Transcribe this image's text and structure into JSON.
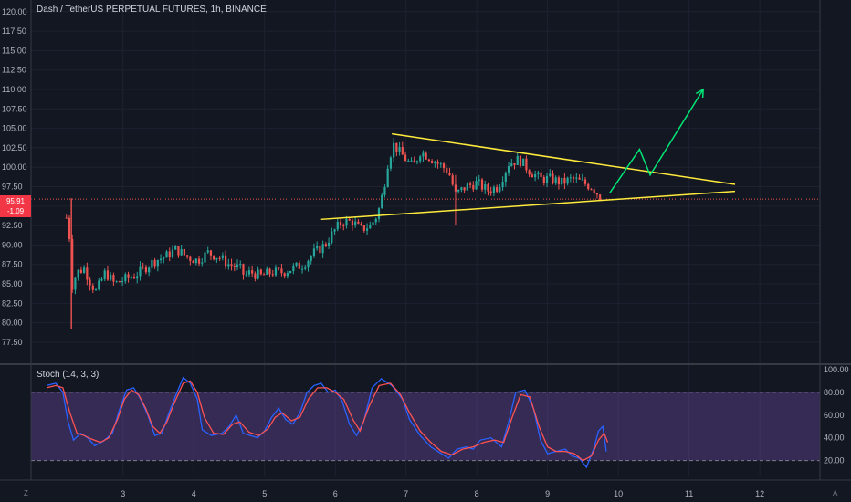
{
  "header": {
    "symbol": "Dash / TetherUS PERPETUAL FUTURES, 1h, BINANCE",
    "indicator": "Stoch (14, 3, 3)"
  },
  "price_tag": {
    "line1": "95.91",
    "line2": "-1.09"
  },
  "corner": {
    "left": "Z",
    "right": "A"
  },
  "colors": {
    "background": "#131722",
    "bull": "#26a69a",
    "bear": "#ef5350",
    "trendline": "#ffeb3b",
    "projection": "#00e676",
    "stoch_k": "#2962ff",
    "stoch_d": "#ff5252",
    "stoch_band": "#7e57c2"
  },
  "chart_data": [
    {
      "type": "candlestick",
      "title": "Dash / TetherUS PERPETUAL FUTURES, 1h, BINANCE",
      "x_ticks": [
        "3",
        "4",
        "5",
        "6",
        "7",
        "8",
        "9",
        "10",
        "11",
        "12"
      ],
      "y_ticks": [
        "77.50",
        "80.00",
        "82.50",
        "85.00",
        "87.50",
        "90.00",
        "92.50",
        "95.00",
        "97.50",
        "100.00",
        "102.50",
        "105.00",
        "107.50",
        "110.00",
        "112.50",
        "115.00",
        "117.50",
        "120.00"
      ],
      "ylim": [
        75.5,
        121.5
      ],
      "xlim": [
        1.7,
        12.85
      ],
      "last_price": 95.91,
      "close_path": [
        [
          2.2,
          93.5
        ],
        [
          2.22,
          94.8
        ],
        [
          2.24,
          91.5
        ],
        [
          2.27,
          84.5
        ],
        [
          2.35,
          86.5
        ],
        [
          2.45,
          87.0
        ],
        [
          2.55,
          85.0
        ],
        [
          2.62,
          84.0
        ],
        [
          2.75,
          86.5
        ],
        [
          2.88,
          85.0
        ],
        [
          3.0,
          85.5
        ],
        [
          3.15,
          86.0
        ],
        [
          3.3,
          87.0
        ],
        [
          3.45,
          88.0
        ],
        [
          3.6,
          88.5
        ],
        [
          3.75,
          89.5
        ],
        [
          3.9,
          88.5
        ],
        [
          4.05,
          88.0
        ],
        [
          4.2,
          89.0
        ],
        [
          4.35,
          88.5
        ],
        [
          4.5,
          87.5
        ],
        [
          4.65,
          87.0
        ],
        [
          4.72,
          86.0
        ],
        [
          4.8,
          86.5
        ],
        [
          4.95,
          86.0
        ],
        [
          5.1,
          86.5
        ],
        [
          5.25,
          86.5
        ],
        [
          5.4,
          87.0
        ],
        [
          5.55,
          87.5
        ],
        [
          5.7,
          89.0
        ],
        [
          5.85,
          90.0
        ],
        [
          6.0,
          92.0
        ],
        [
          6.1,
          93.0
        ],
        [
          6.25,
          93.0
        ],
        [
          6.35,
          92.0
        ],
        [
          6.5,
          92.5
        ],
        [
          6.6,
          94.0
        ],
        [
          6.68,
          97.0
        ],
        [
          6.75,
          101.0
        ],
        [
          6.83,
          103.0
        ],
        [
          6.9,
          102.0
        ],
        [
          7.0,
          101.0
        ],
        [
          7.1,
          100.0
        ],
        [
          7.2,
          102.0
        ],
        [
          7.3,
          101.5
        ],
        [
          7.45,
          100.5
        ],
        [
          7.6,
          99.5
        ],
        [
          7.7,
          96.5
        ],
        [
          7.85,
          97.5
        ],
        [
          8.0,
          98.0
        ],
        [
          8.15,
          97.0
        ],
        [
          8.3,
          97.5
        ],
        [
          8.45,
          100.5
        ],
        [
          8.6,
          101.0
        ],
        [
          8.75,
          99.5
        ],
        [
          8.9,
          98.5
        ],
        [
          9.05,
          98.5
        ],
        [
          9.2,
          98.0
        ],
        [
          9.35,
          98.5
        ],
        [
          9.5,
          98.0
        ],
        [
          9.62,
          97.5
        ],
        [
          9.72,
          96.5
        ],
        [
          9.78,
          95.9
        ]
      ],
      "annotations": {
        "upper_trendline": [
          [
            6.8,
            104.3
          ],
          [
            11.65,
            97.8
          ]
        ],
        "lower_trendline": [
          [
            5.8,
            93.3
          ],
          [
            11.65,
            96.9
          ]
        ],
        "projection_path": [
          [
            9.88,
            96.7
          ],
          [
            10.3,
            102.3
          ],
          [
            10.45,
            99.0
          ],
          [
            11.2,
            110.0
          ]
        ]
      }
    },
    {
      "type": "line",
      "title": "Stoch (14, 3, 3)",
      "y_ticks": [
        "20.00",
        "40.00",
        "60.00",
        "80.00",
        "100.00"
      ],
      "ylim": [
        6,
        104
      ],
      "band": [
        20,
        80
      ],
      "series": [
        {
          "name": "%K",
          "points": [
            [
              1.92,
              86
            ],
            [
              2.05,
              88
            ],
            [
              2.15,
              80
            ],
            [
              2.22,
              55
            ],
            [
              2.3,
              38
            ],
            [
              2.4,
              44
            ],
            [
              2.5,
              40
            ],
            [
              2.6,
              33
            ],
            [
              2.72,
              37
            ],
            [
              2.85,
              44
            ],
            [
              2.95,
              65
            ],
            [
              3.05,
              82
            ],
            [
              3.15,
              84
            ],
            [
              3.25,
              74
            ],
            [
              3.35,
              60
            ],
            [
              3.45,
              42
            ],
            [
              3.55,
              44
            ],
            [
              3.65,
              62
            ],
            [
              3.75,
              78
            ],
            [
              3.85,
              93
            ],
            [
              3.95,
              88
            ],
            [
              4.05,
              74
            ],
            [
              4.12,
              47
            ],
            [
              4.25,
              42
            ],
            [
              4.4,
              44
            ],
            [
              4.5,
              50
            ],
            [
              4.6,
              60
            ],
            [
              4.7,
              44
            ],
            [
              4.8,
              42
            ],
            [
              4.9,
              40
            ],
            [
              5.0,
              46
            ],
            [
              5.1,
              58
            ],
            [
              5.2,
              66
            ],
            [
              5.3,
              56
            ],
            [
              5.4,
              52
            ],
            [
              5.5,
              62
            ],
            [
              5.6,
              80
            ],
            [
              5.7,
              86
            ],
            [
              5.8,
              88
            ],
            [
              5.9,
              80
            ],
            [
              6.0,
              82
            ],
            [
              6.1,
              72
            ],
            [
              6.2,
              52
            ],
            [
              6.3,
              42
            ],
            [
              6.4,
              54
            ],
            [
              6.52,
              84
            ],
            [
              6.65,
              92
            ],
            [
              6.8,
              86
            ],
            [
              6.95,
              74
            ],
            [
              7.05,
              56
            ],
            [
              7.2,
              42
            ],
            [
              7.35,
              32
            ],
            [
              7.5,
              26
            ],
            [
              7.6,
              22
            ],
            [
              7.72,
              30
            ],
            [
              7.85,
              32
            ],
            [
              7.95,
              30
            ],
            [
              8.05,
              38
            ],
            [
              8.2,
              40
            ],
            [
              8.35,
              32
            ],
            [
              8.45,
              54
            ],
            [
              8.55,
              80
            ],
            [
              8.68,
              82
            ],
            [
              8.8,
              66
            ],
            [
              8.9,
              38
            ],
            [
              9.0,
              26
            ],
            [
              9.12,
              28
            ],
            [
              9.25,
              30
            ],
            [
              9.35,
              24
            ],
            [
              9.45,
              22
            ],
            [
              9.55,
              14
            ],
            [
              9.65,
              30
            ],
            [
              9.72,
              46
            ],
            [
              9.78,
              50
            ],
            [
              9.83,
              28
            ]
          ]
        },
        {
          "name": "%D",
          "points": [
            [
              1.92,
              84
            ],
            [
              2.05,
              86
            ],
            [
              2.15,
              84
            ],
            [
              2.25,
              62
            ],
            [
              2.35,
              44
            ],
            [
              2.45,
              42
            ],
            [
              2.55,
              39
            ],
            [
              2.68,
              36
            ],
            [
              2.8,
              40
            ],
            [
              2.92,
              56
            ],
            [
              3.02,
              74
            ],
            [
              3.12,
              82
            ],
            [
              3.22,
              78
            ],
            [
              3.32,
              66
            ],
            [
              3.42,
              50
            ],
            [
              3.52,
              44
            ],
            [
              3.62,
              54
            ],
            [
              3.72,
              70
            ],
            [
              3.85,
              88
            ],
            [
              3.95,
              90
            ],
            [
              4.05,
              80
            ],
            [
              4.15,
              58
            ],
            [
              4.28,
              44
            ],
            [
              4.42,
              43
            ],
            [
              4.55,
              52
            ],
            [
              4.65,
              54
            ],
            [
              4.78,
              45
            ],
            [
              4.92,
              42
            ],
            [
              5.05,
              48
            ],
            [
              5.15,
              58
            ],
            [
              5.25,
              62
            ],
            [
              5.38,
              55
            ],
            [
              5.5,
              58
            ],
            [
              5.62,
              74
            ],
            [
              5.75,
              84
            ],
            [
              5.88,
              84
            ],
            [
              6.0,
              80
            ],
            [
              6.12,
              74
            ],
            [
              6.25,
              56
            ],
            [
              6.35,
              46
            ],
            [
              6.48,
              68
            ],
            [
              6.62,
              86
            ],
            [
              6.78,
              88
            ],
            [
              6.92,
              78
            ],
            [
              7.05,
              62
            ],
            [
              7.2,
              46
            ],
            [
              7.35,
              36
            ],
            [
              7.5,
              28
            ],
            [
              7.65,
              25
            ],
            [
              7.8,
              30
            ],
            [
              7.95,
              32
            ],
            [
              8.1,
              36
            ],
            [
              8.25,
              38
            ],
            [
              8.38,
              36
            ],
            [
              8.5,
              58
            ],
            [
              8.62,
              78
            ],
            [
              8.75,
              76
            ],
            [
              8.88,
              50
            ],
            [
              9.0,
              32
            ],
            [
              9.12,
              28
            ],
            [
              9.25,
              28
            ],
            [
              9.38,
              26
            ],
            [
              9.5,
              20
            ],
            [
              9.62,
              24
            ],
            [
              9.72,
              38
            ],
            [
              9.8,
              44
            ],
            [
              9.85,
              36
            ]
          ]
        }
      ]
    }
  ]
}
